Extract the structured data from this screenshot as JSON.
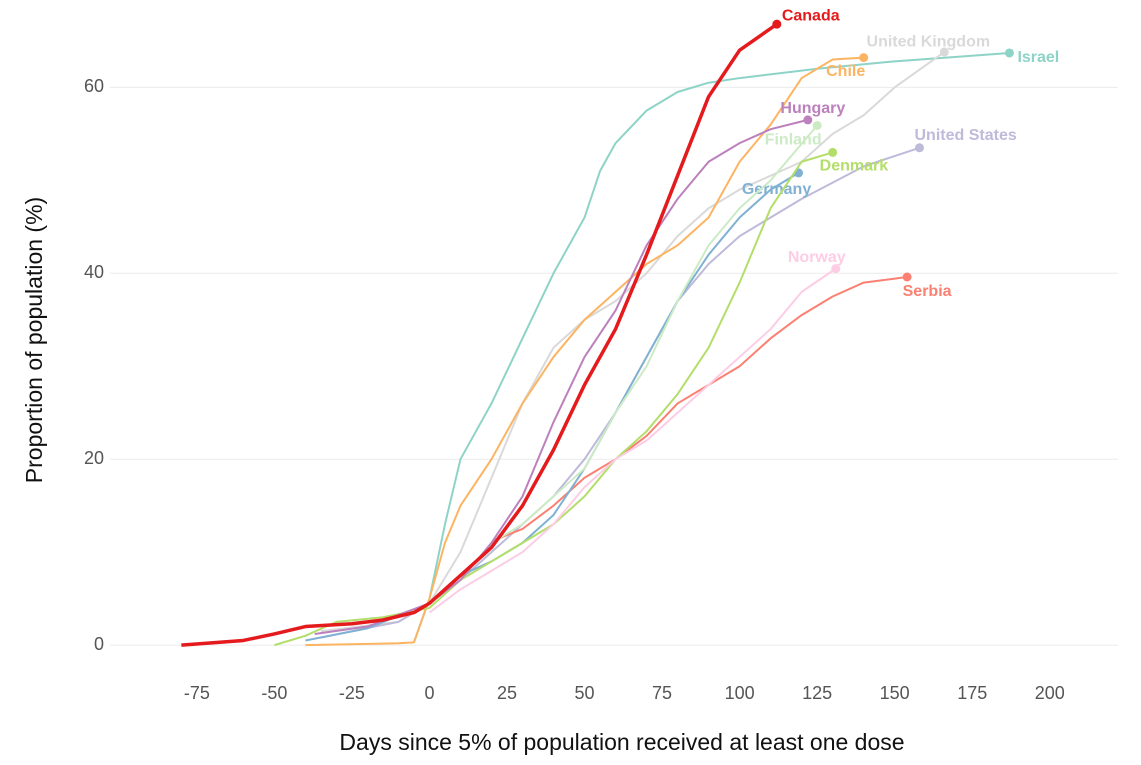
{
  "chart_data": {
    "type": "line",
    "xlabel": "Days since 5% of population received at least one dose",
    "ylabel": "Proportion of population (%)",
    "xlim": [
      -103,
      222
    ],
    "ylim": [
      -3,
      68
    ],
    "xticks": [
      -75,
      -50,
      -25,
      0,
      25,
      50,
      75,
      100,
      125,
      150,
      175,
      200
    ],
    "yticks": [
      0,
      20,
      40,
      60
    ],
    "grid": true,
    "series": [
      {
        "name": "Israel",
        "color": "#8dd3c7",
        "x": [
          -5,
          0,
          5,
          10,
          15,
          20,
          30,
          40,
          50,
          55,
          60,
          70,
          80,
          90,
          100,
          125,
          150,
          187
        ],
        "values": [
          0.3,
          5,
          13,
          20,
          23,
          26,
          33,
          40,
          46,
          51,
          54,
          57.5,
          59.5,
          60.5,
          61,
          62,
          62.8,
          63.7
        ]
      },
      {
        "name": "United Kingdom",
        "color": "#d9d9d9",
        "x": [
          -35,
          -10,
          0,
          10,
          20,
          30,
          40,
          50,
          60,
          70,
          80,
          90,
          100,
          120,
          130,
          140,
          150,
          166
        ],
        "values": [
          1.5,
          2.5,
          4.5,
          10,
          18,
          26,
          32,
          35,
          37,
          40,
          44,
          47,
          49,
          52,
          55,
          57,
          60,
          63.8
        ]
      },
      {
        "name": "United States",
        "color": "#bebada",
        "x": [
          -35,
          -25,
          -10,
          0,
          10,
          20,
          30,
          40,
          50,
          60,
          70,
          80,
          90,
          100,
          120,
          140,
          158
        ],
        "values": [
          0.8,
          1.5,
          2.5,
          4.5,
          7,
          10,
          13,
          16,
          20,
          25,
          31,
          37,
          41,
          44,
          48,
          51.5,
          53.5
        ]
      },
      {
        "name": "Serbia",
        "color": "#fb8072",
        "x": [
          21,
          30,
          40,
          50,
          60,
          70,
          80,
          90,
          100,
          110,
          120,
          130,
          140,
          154
        ],
        "values": [
          11.3,
          12.5,
          15,
          18,
          20,
          22.5,
          26,
          28,
          30,
          33,
          35.5,
          37.5,
          39,
          39.6
        ]
      },
      {
        "name": "Germany",
        "color": "#80b1d3",
        "x": [
          -40,
          -20,
          0,
          10,
          20,
          30,
          40,
          50,
          60,
          70,
          80,
          90,
          100,
          110,
          119
        ],
        "values": [
          0.5,
          1.8,
          4.5,
          7.5,
          9,
          11,
          14,
          19,
          25,
          31,
          37,
          42,
          46,
          49,
          50.8
        ]
      },
      {
        "name": "Chile",
        "color": "#fdb462",
        "x": [
          -40,
          -10,
          -5,
          0,
          5,
          10,
          20,
          30,
          40,
          50,
          60,
          70,
          80,
          90,
          100,
          110,
          120,
          130,
          140
        ],
        "values": [
          0,
          0.2,
          0.3,
          5,
          11,
          15,
          20,
          26,
          31,
          35,
          38,
          41,
          43,
          46,
          52,
          56,
          61,
          63,
          63.2
        ]
      },
      {
        "name": "Denmark",
        "color": "#b3de69",
        "x": [
          -50,
          -40,
          -30,
          -15,
          0,
          10,
          20,
          30,
          40,
          50,
          60,
          70,
          80,
          90,
          100,
          110,
          120,
          130
        ],
        "values": [
          0,
          1,
          2.5,
          3,
          4,
          7,
          9,
          11,
          13,
          16,
          20,
          23,
          27,
          32,
          39,
          47,
          52,
          53
        ]
      },
      {
        "name": "Norway",
        "color": "#fccde5",
        "x": [
          0,
          10,
          20,
          30,
          40,
          50,
          60,
          70,
          80,
          90,
          100,
          110,
          120,
          131
        ],
        "values": [
          3.5,
          6,
          8,
          10,
          13,
          17,
          20,
          22,
          25,
          28,
          31,
          34,
          38,
          40.5
        ]
      },
      {
        "name": "Finland",
        "color": "#ccebc5",
        "x": [
          0,
          10,
          20,
          30,
          40,
          50,
          60,
          70,
          80,
          90,
          100,
          110,
          125
        ],
        "values": [
          4.5,
          7,
          11,
          13,
          16,
          19,
          25,
          30,
          37,
          43,
          47,
          50,
          55.9
        ]
      },
      {
        "name": "Hungary",
        "color": "#bc80bd",
        "x": [
          -37,
          -20,
          0,
          10,
          20,
          30,
          40,
          50,
          60,
          70,
          80,
          90,
          100,
          110,
          122
        ],
        "values": [
          1.2,
          2,
          4.5,
          7,
          11,
          16,
          24,
          31,
          36,
          43,
          48,
          52,
          54,
          55.5,
          56.5
        ]
      },
      {
        "name": "Canada",
        "color": "#e41a1c",
        "x": [
          -80,
          -60,
          -50,
          -40,
          -25,
          -15,
          -5,
          0,
          5,
          10,
          20,
          30,
          40,
          50,
          60,
          70,
          80,
          90,
          100,
          112
        ],
        "values": [
          0,
          0.5,
          1.2,
          2,
          2.3,
          2.7,
          3.5,
          4.5,
          6,
          7.5,
          10.5,
          15,
          21,
          28,
          34,
          42,
          50.5,
          59,
          64,
          66.8
        ]
      }
    ]
  }
}
